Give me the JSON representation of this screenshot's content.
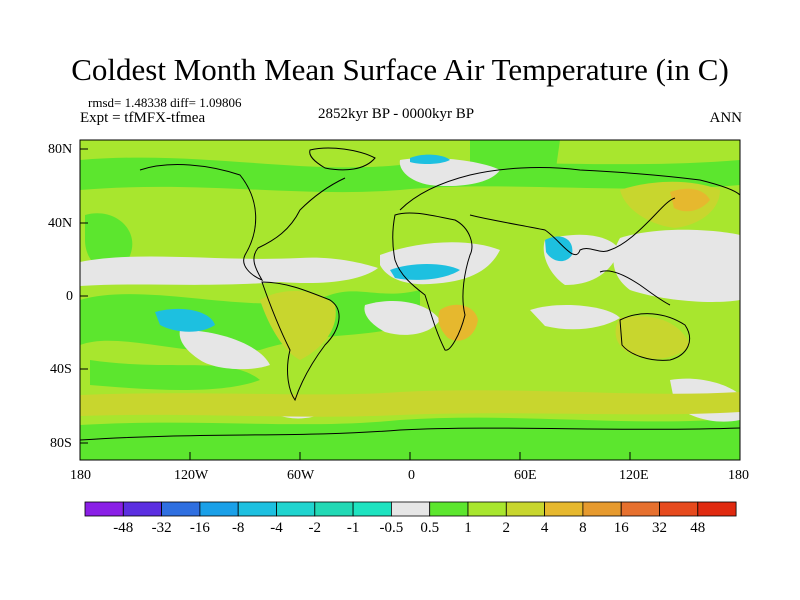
{
  "title": "Coldest Month Mean Surface Air Temperature (in C)",
  "stats": "rmsd= 1.48338 diff= 1.09806",
  "experiment": "Expt = tfMFX-tfmea",
  "period": "2852kyr BP - 0000kyr BP",
  "season": "ANN",
  "lat_labels": [
    "80N",
    "40N",
    "0",
    "40S",
    "80S"
  ],
  "lon_labels": [
    "180",
    "120W",
    "60W",
    "0",
    "60E",
    "120E",
    "180"
  ],
  "colorbar": {
    "labels": [
      "-48",
      "-32",
      "-16",
      "-8",
      "-4",
      "-2",
      "-1",
      "-0.5",
      "0.5",
      "1",
      "2",
      "4",
      "8",
      "16",
      "32",
      "48"
    ],
    "colors": [
      "#8a1fe6",
      "#5b2ee0",
      "#2f6fe0",
      "#1aa0e8",
      "#1dc0e0",
      "#20d4cf",
      "#22d9b5",
      "#1ee3c0",
      "#e6e6e6",
      "#5ce62e",
      "#a8e62e",
      "#c8d62e",
      "#e6b82e",
      "#e69a2e",
      "#e6702e",
      "#e64a1e",
      "#e02a10"
    ]
  },
  "map_colors": {
    "ocean_base": "#a8e62e",
    "green": "#5ce62e",
    "gray": "#e6e6e6",
    "cyan": "#1dc0e0",
    "yellow": "#c8d62e",
    "orange": "#e6b82e"
  }
}
